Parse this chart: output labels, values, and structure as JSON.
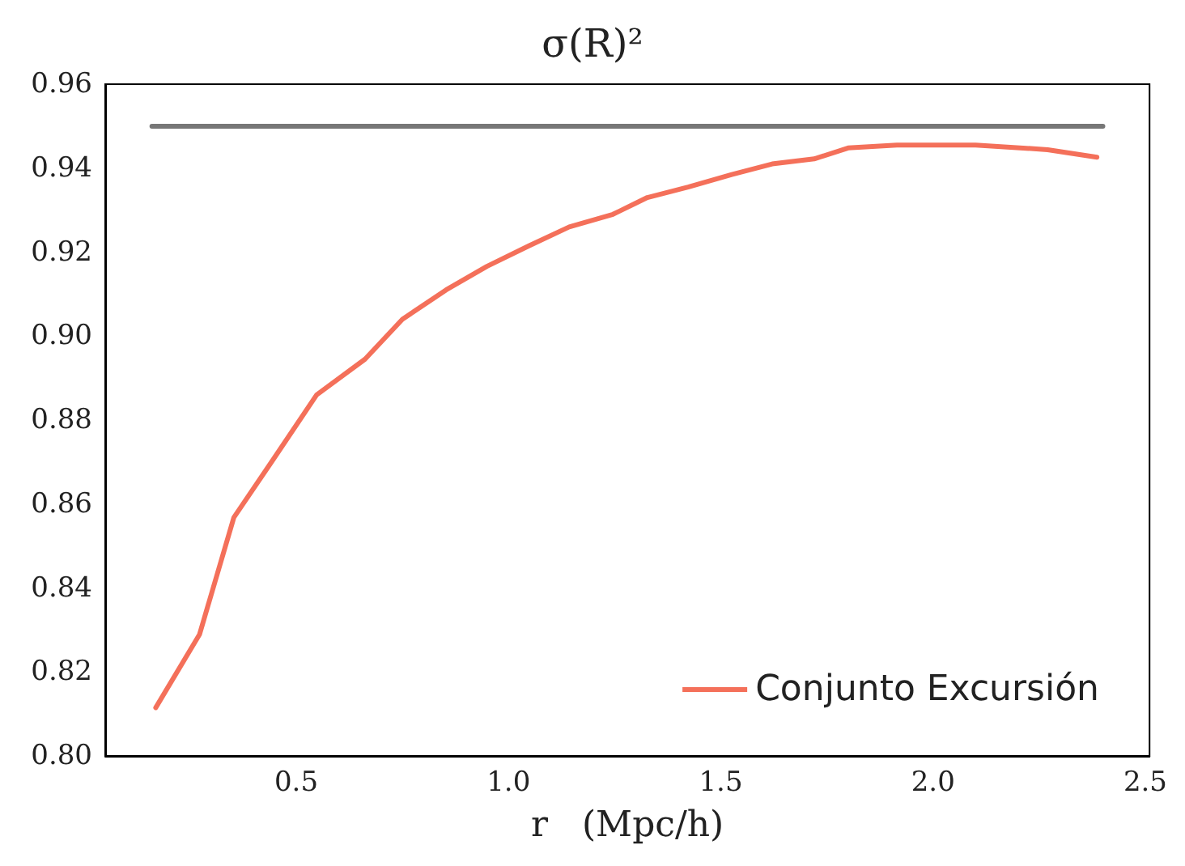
{
  "chart_data": {
    "type": "line",
    "title": "σ(R)²",
    "xlabel": "r   (Mpc/h)",
    "xlim": [
      0.05,
      2.51
    ],
    "ylim": [
      0.8,
      0.96
    ],
    "xticks": [
      {
        "value": 0.5,
        "label": "0.5"
      },
      {
        "value": 1.0,
        "label": "1.0"
      },
      {
        "value": 1.5,
        "label": "1.5"
      },
      {
        "value": 2.0,
        "label": "2.0"
      },
      {
        "value": 2.5,
        "label": "2.5"
      }
    ],
    "yticks": [
      {
        "value": 0.8,
        "label": "0.80"
      },
      {
        "value": 0.82,
        "label": "0.82"
      },
      {
        "value": 0.84,
        "label": "0.84"
      },
      {
        "value": 0.86,
        "label": "0.86"
      },
      {
        "value": 0.88,
        "label": "0.88"
      },
      {
        "value": 0.9,
        "label": "0.90"
      },
      {
        "value": 0.92,
        "label": "0.92"
      },
      {
        "value": 0.94,
        "label": "0.94"
      },
      {
        "value": 0.96,
        "label": "0.96"
      }
    ],
    "grid": false,
    "legend": "bottom right",
    "marker": "none",
    "line_style": "solid",
    "series": [
      {
        "color": "#777777",
        "x": [
          0.16,
          2.4
        ],
        "values": [
          0.95,
          0.95
        ]
      },
      {
        "name": "Conjunto Excursión",
        "color": "#f4705a",
        "x": [
          0.169,
          0.272,
          0.353,
          0.445,
          0.548,
          0.662,
          0.75,
          0.853,
          0.949,
          1.048,
          1.143,
          1.246,
          1.327,
          1.423,
          1.526,
          1.621,
          1.72,
          1.8,
          1.915,
          2.1,
          2.27,
          2.386
        ],
        "values": [
          0.8115,
          0.8289,
          0.8568,
          0.8705,
          0.886,
          0.8945,
          0.904,
          0.911,
          0.9166,
          0.9215,
          0.926,
          0.929,
          0.933,
          0.9355,
          0.9385,
          0.941,
          0.9422,
          0.9448,
          0.9455,
          0.9455,
          0.9444,
          0.9426
        ]
      }
    ]
  }
}
